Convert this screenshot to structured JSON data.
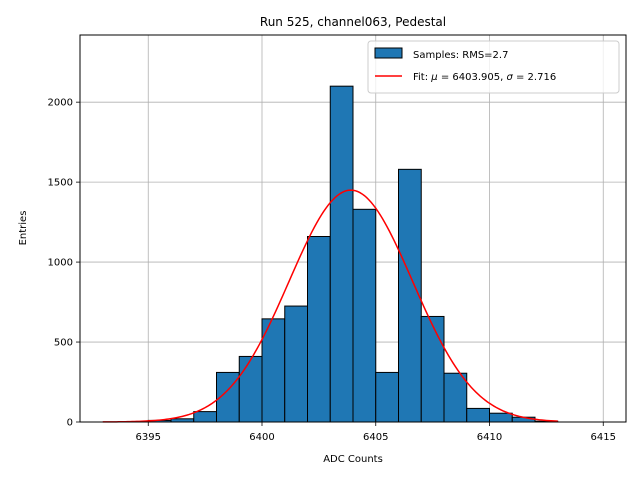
{
  "chart_data": {
    "type": "bar",
    "title": "Run 525, channel063, Pedestal",
    "xlabel": "ADC Counts",
    "ylabel": "Entries",
    "xlim": [
      6392,
      6416
    ],
    "ylim": [
      0,
      2420
    ],
    "grid": true,
    "legend_position": "top-right",
    "x_ticks": [
      6395,
      6400,
      6405,
      6410,
      6415
    ],
    "y_ticks": [
      0,
      500,
      1000,
      1500,
      2000
    ],
    "histogram": {
      "name": "Samples: RMS=2.7",
      "color": "#1f77b4",
      "bin_width": 1,
      "bins": [
        {
          "start": 6395,
          "count": 10
        },
        {
          "start": 6396,
          "count": 20
        },
        {
          "start": 6397,
          "count": 65
        },
        {
          "start": 6398,
          "count": 310
        },
        {
          "start": 6399,
          "count": 410
        },
        {
          "start": 6400,
          "count": 645
        },
        {
          "start": 6401,
          "count": 725
        },
        {
          "start": 6402,
          "count": 1160
        },
        {
          "start": 6403,
          "count": 2100
        },
        {
          "start": 6404,
          "count": 1330
        },
        {
          "start": 6405,
          "count": 310
        },
        {
          "start": 6406,
          "count": 1580
        },
        {
          "start": 6407,
          "count": 660
        },
        {
          "start": 6408,
          "count": 305
        },
        {
          "start": 6409,
          "count": 85
        },
        {
          "start": 6410,
          "count": 55
        },
        {
          "start": 6411,
          "count": 30
        },
        {
          "start": 6412,
          "count": 5
        }
      ]
    },
    "fit": {
      "name": "Fit: μ = 6403.905, σ = 2.716",
      "label_prefix": "Fit: ",
      "mu_symbol": "μ",
      "mu_text": " = 6403.905, ",
      "sigma_symbol": "σ",
      "sigma_text": " = 2.716",
      "color": "#ff0000",
      "mu": 6403.905,
      "sigma": 2.716,
      "amplitude": 1450,
      "x_range": [
        6393,
        6413
      ]
    }
  }
}
